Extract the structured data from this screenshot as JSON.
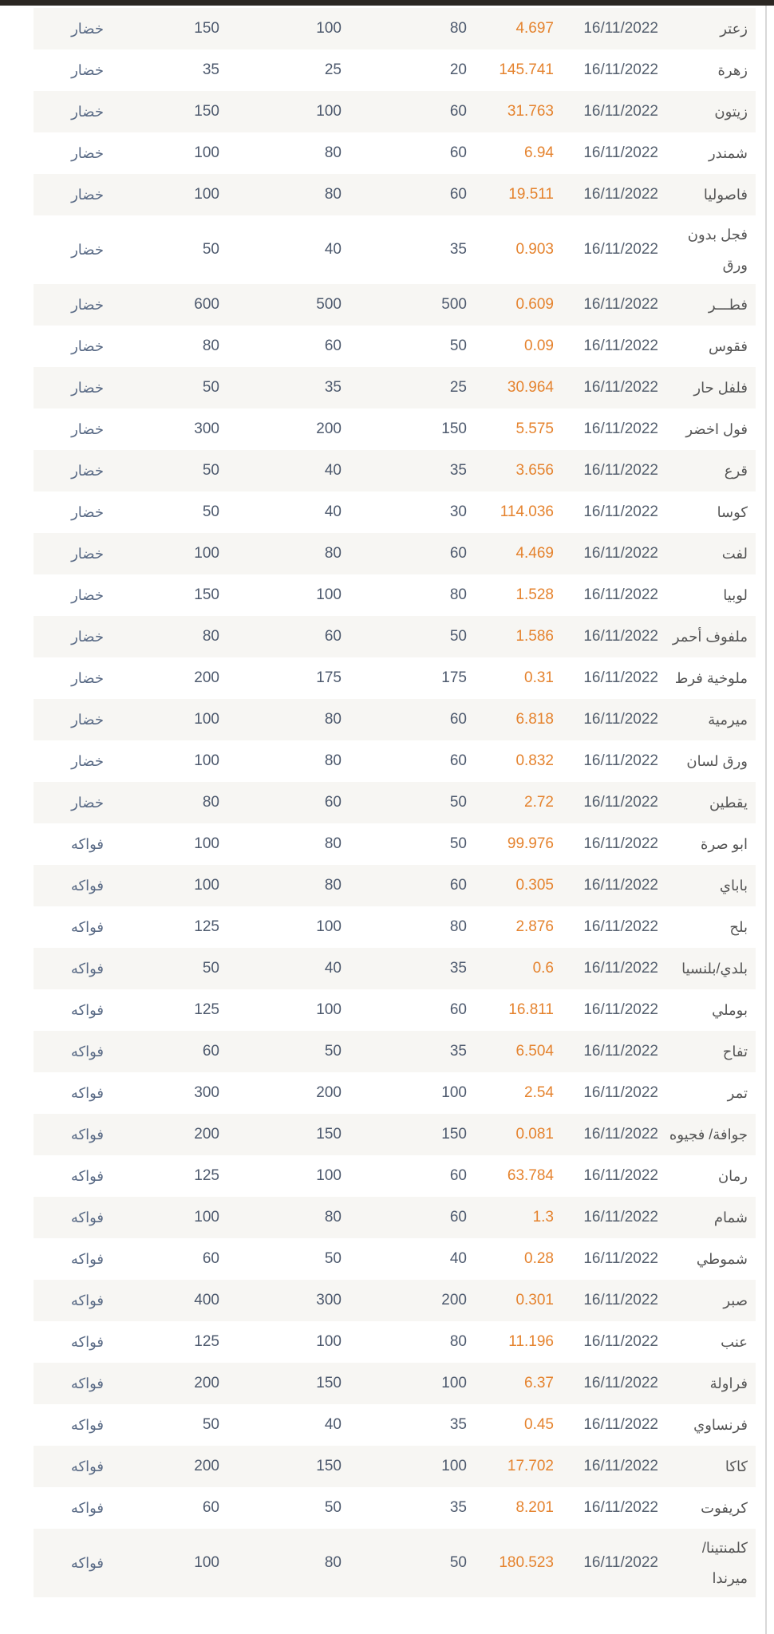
{
  "colors": {
    "price": "#e5832e",
    "text": "#4e5a6e",
    "stripe": "#f7f6f3"
  },
  "rows": [
    [
      "زعتر",
      "16/11/2022",
      "4.697",
      "80",
      "100",
      "150",
      "خضار"
    ],
    [
      "زهرة",
      "16/11/2022",
      "145.741",
      "20",
      "25",
      "35",
      "خضار"
    ],
    [
      "زيتون",
      "16/11/2022",
      "31.763",
      "60",
      "100",
      "150",
      "خضار"
    ],
    [
      "شمندر",
      "16/11/2022",
      "6.94",
      "60",
      "80",
      "100",
      "خضار"
    ],
    [
      "فاصوليا",
      "16/11/2022",
      "19.511",
      "60",
      "80",
      "100",
      "خضار"
    ],
    [
      "فجل بدون ورق",
      "16/11/2022",
      "0.903",
      "35",
      "40",
      "50",
      "خضار"
    ],
    [
      "فطـــر",
      "16/11/2022",
      "0.609",
      "500",
      "500",
      "600",
      "خضار"
    ],
    [
      "فقوس",
      "16/11/2022",
      "0.09",
      "50",
      "60",
      "80",
      "خضار"
    ],
    [
      "فلفل حار",
      "16/11/2022",
      "30.964",
      "25",
      "35",
      "50",
      "خضار"
    ],
    [
      "فول اخضر",
      "16/11/2022",
      "5.575",
      "150",
      "200",
      "300",
      "خضار"
    ],
    [
      "قرع",
      "16/11/2022",
      "3.656",
      "35",
      "40",
      "50",
      "خضار"
    ],
    [
      "كوسا",
      "16/11/2022",
      "114.036",
      "30",
      "40",
      "50",
      "خضار"
    ],
    [
      "لفت",
      "16/11/2022",
      "4.469",
      "60",
      "80",
      "100",
      "خضار"
    ],
    [
      "لوبيا",
      "16/11/2022",
      "1.528",
      "80",
      "100",
      "150",
      "خضار"
    ],
    [
      "ملفوف أحمر",
      "16/11/2022",
      "1.586",
      "50",
      "60",
      "80",
      "خضار"
    ],
    [
      "ملوخية فرط",
      "16/11/2022",
      "0.31",
      "175",
      "175",
      "200",
      "خضار"
    ],
    [
      "ميرمية",
      "16/11/2022",
      "6.818",
      "60",
      "80",
      "100",
      "خضار"
    ],
    [
      "ورق لسان",
      "16/11/2022",
      "0.832",
      "60",
      "80",
      "100",
      "خضار"
    ],
    [
      "يقطين",
      "16/11/2022",
      "2.72",
      "50",
      "60",
      "80",
      "خضار"
    ],
    [
      "ابو صرة",
      "16/11/2022",
      "99.976",
      "50",
      "80",
      "100",
      "فواكه"
    ],
    [
      "باباي",
      "16/11/2022",
      "0.305",
      "60",
      "80",
      "100",
      "فواكه"
    ],
    [
      "بلح",
      "16/11/2022",
      "2.876",
      "80",
      "100",
      "125",
      "فواكه"
    ],
    [
      "بلدي/بلنسيا",
      "16/11/2022",
      "0.6",
      "35",
      "40",
      "50",
      "فواكه"
    ],
    [
      "بوملي",
      "16/11/2022",
      "16.811",
      "60",
      "100",
      "125",
      "فواكه"
    ],
    [
      "تفاح",
      "16/11/2022",
      "6.504",
      "35",
      "50",
      "60",
      "فواكه"
    ],
    [
      "تمر",
      "16/11/2022",
      "2.54",
      "100",
      "200",
      "300",
      "فواكه"
    ],
    [
      "جوافة/ فجيوه",
      "16/11/2022",
      "0.081",
      "150",
      "150",
      "200",
      "فواكه"
    ],
    [
      "رمان",
      "16/11/2022",
      "63.784",
      "60",
      "100",
      "125",
      "فواكه"
    ],
    [
      "شمام",
      "16/11/2022",
      "1.3",
      "60",
      "80",
      "100",
      "فواكه"
    ],
    [
      "شموطي",
      "16/11/2022",
      "0.28",
      "40",
      "50",
      "60",
      "فواكه"
    ],
    [
      "صبر",
      "16/11/2022",
      "0.301",
      "200",
      "300",
      "400",
      "فواكه"
    ],
    [
      "عنب",
      "16/11/2022",
      "11.196",
      "80",
      "100",
      "125",
      "فواكه"
    ],
    [
      "فراولة",
      "16/11/2022",
      "6.37",
      "100",
      "150",
      "200",
      "فواكه"
    ],
    [
      "فرنساوي",
      "16/11/2022",
      "0.45",
      "35",
      "40",
      "50",
      "فواكه"
    ],
    [
      "كاكا",
      "16/11/2022",
      "17.702",
      "100",
      "150",
      "200",
      "فواكه"
    ],
    [
      "كريفوت",
      "16/11/2022",
      "8.201",
      "35",
      "50",
      "60",
      "فواكه"
    ],
    [
      "كلمنتينا/ ميرندا",
      "16/11/2022",
      "180.523",
      "50",
      "80",
      "100",
      "فواكه"
    ]
  ]
}
